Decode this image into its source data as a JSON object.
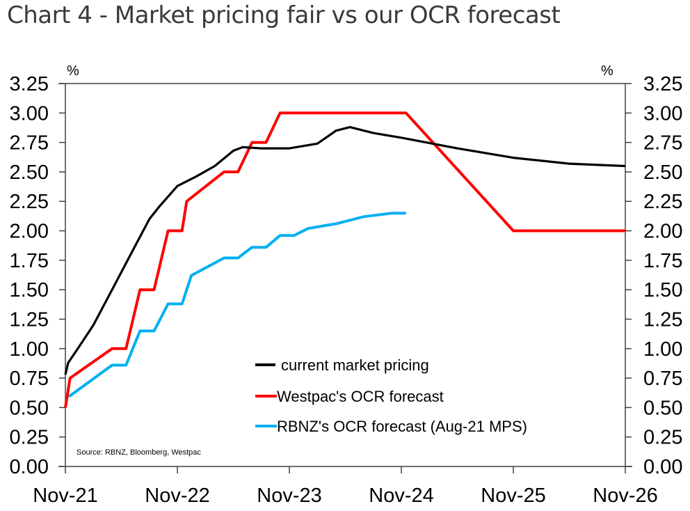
{
  "title": "Chart 4 - Market pricing fair vs our OCR forecast",
  "chart_data": {
    "type": "line",
    "title": "Chart 4 - Market pricing fair vs our OCR forecast",
    "xlabel": "",
    "ylabel": "%",
    "ylabel_right": "%",
    "x_unit": "months since Nov-21",
    "xlim": [
      0,
      60
    ],
    "ylim": [
      0,
      3.25
    ],
    "yticks": [
      "0.00",
      "0.25",
      "0.50",
      "0.75",
      "1.00",
      "1.25",
      "1.50",
      "1.75",
      "2.00",
      "2.25",
      "2.50",
      "2.75",
      "3.00",
      "3.25"
    ],
    "ytick_values": [
      0,
      0.25,
      0.5,
      0.75,
      1.0,
      1.25,
      1.5,
      1.75,
      2.0,
      2.25,
      2.5,
      2.75,
      3.0,
      3.25
    ],
    "xticks": [
      "Nov-21",
      "Nov-22",
      "Nov-23",
      "Nov-24",
      "Nov-25",
      "Nov-26"
    ],
    "xtick_values": [
      0,
      12,
      24,
      36,
      48,
      60
    ],
    "grid": false,
    "legend_position": "bottom-center",
    "source": "Source: RBNZ, Bloomberg, Westpac",
    "series": [
      {
        "name": "current market pricing",
        "color": "#000000",
        "x": [
          0,
          0.3,
          1.5,
          3,
          5,
          7,
          9,
          10,
          12,
          14,
          16,
          18,
          19,
          21,
          24,
          27,
          29,
          30.5,
          33,
          36,
          42,
          48,
          54,
          60
        ],
        "values": [
          0.78,
          0.88,
          1.02,
          1.2,
          1.5,
          1.8,
          2.1,
          2.2,
          2.38,
          2.46,
          2.55,
          2.68,
          2.71,
          2.7,
          2.7,
          2.74,
          2.85,
          2.88,
          2.83,
          2.79,
          2.7,
          2.62,
          2.57,
          2.55
        ]
      },
      {
        "name": "Westpac's OCR  forecast",
        "color": "#ff0000",
        "x": [
          0,
          0.5,
          5,
          6.5,
          8,
          9.5,
          11,
          12.5,
          13,
          17,
          18.5,
          20,
          21.5,
          23,
          36.5,
          48,
          60
        ],
        "values": [
          0.5,
          0.75,
          1.0,
          1.0,
          1.5,
          1.5,
          2.0,
          2.0,
          2.25,
          2.5,
          2.5,
          2.75,
          2.75,
          3.0,
          3.0,
          2.0,
          2.0
        ]
      },
      {
        "name": "RBNZ's OCR forecast (Aug-21 MPS)",
        "color": "#00b0f0",
        "x": [
          0,
          0.5,
          5,
          6.5,
          8,
          9.5,
          11,
          12.5,
          13.5,
          17,
          18.5,
          20,
          21.5,
          23,
          24.5,
          26,
          29,
          32,
          35,
          36.5
        ],
        "values": [
          0.6,
          0.6,
          0.86,
          0.86,
          1.15,
          1.15,
          1.38,
          1.38,
          1.62,
          1.77,
          1.77,
          1.86,
          1.86,
          1.96,
          1.96,
          2.02,
          2.06,
          2.12,
          2.15,
          2.15
        ]
      }
    ]
  }
}
